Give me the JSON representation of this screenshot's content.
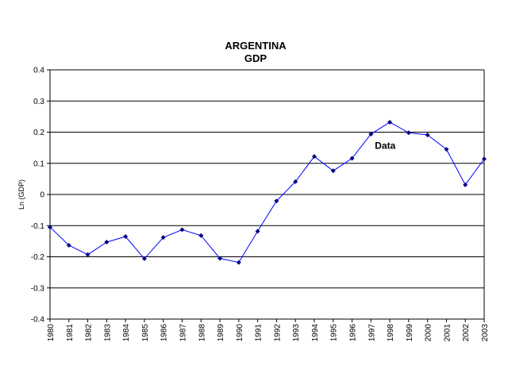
{
  "chart_data": {
    "type": "line",
    "title": "ARGENTINA",
    "subtitle": "GDP",
    "xlabel": "",
    "ylabel": "Ln (GDP)",
    "ylim": [
      -0.4,
      0.4
    ],
    "yticks": [
      0.4,
      0.3,
      0.2,
      0.1,
      0,
      -0.1,
      -0.2,
      -0.3,
      -0.4
    ],
    "ytick_labels": [
      "0.4",
      "0.3",
      "0.2",
      "0.1",
      "0",
      "-0.1",
      "-0.2",
      "-0.3",
      "-0.4"
    ],
    "grid": "horizontal",
    "line_color": "#0000ff",
    "categories": [
      "1980",
      "1981",
      "1982",
      "1983",
      "1984",
      "1985",
      "1986",
      "1987",
      "1988",
      "1989",
      "1990",
      "1991",
      "1992",
      "1993",
      "1994",
      "1995",
      "1996",
      "1997",
      "1998",
      "1999",
      "2000",
      "2001",
      "2002",
      "2003"
    ],
    "series": [
      {
        "name": "Data",
        "values": [
          -0.105,
          -0.163,
          -0.193,
          -0.153,
          -0.135,
          -0.206,
          -0.138,
          -0.113,
          -0.132,
          -0.205,
          -0.218,
          -0.118,
          -0.021,
          0.041,
          0.122,
          0.076,
          0.116,
          0.194,
          0.232,
          0.198,
          0.191,
          0.145,
          0.031,
          0.114
        ]
      }
    ],
    "annotations": [
      {
        "text": "Data",
        "year": "1997",
        "value": 0.157
      }
    ]
  }
}
